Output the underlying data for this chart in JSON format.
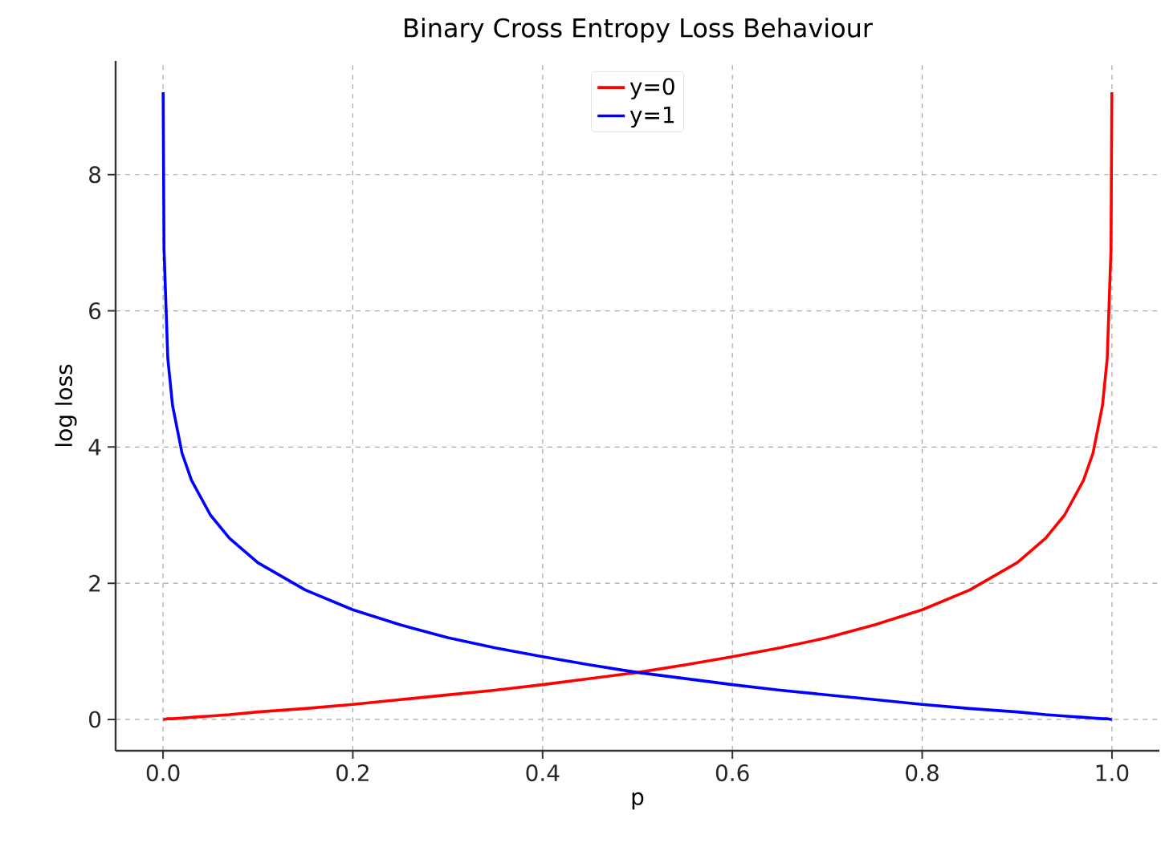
{
  "chart_data": {
    "type": "line",
    "title": "Binary Cross Entropy Loss Behaviour",
    "xlabel": "p",
    "ylabel": "log loss",
    "x": [
      0.0001,
      0.001,
      0.005,
      0.01,
      0.02,
      0.03,
      0.05,
      0.07,
      0.1,
      0.15,
      0.2,
      0.25,
      0.3,
      0.35,
      0.4,
      0.45,
      0.5,
      0.55,
      0.6,
      0.65,
      0.7,
      0.75,
      0.8,
      0.85,
      0.9,
      0.93,
      0.95,
      0.97,
      0.98,
      0.99,
      0.995,
      0.999,
      0.9999
    ],
    "series": [
      {
        "name": "y=0",
        "color": "#ff0000",
        "values": [
          0,
          0,
          0.01,
          0.01,
          0.02,
          0.03,
          0.05,
          0.07,
          0.11,
          0.16,
          0.22,
          0.29,
          0.36,
          0.43,
          0.51,
          0.6,
          0.69,
          0.8,
          0.92,
          1.05,
          1.2,
          1.39,
          1.61,
          1.9,
          2.3,
          2.66,
          3.0,
          3.51,
          3.91,
          4.61,
          5.3,
          6.91,
          9.21
        ]
      },
      {
        "name": "y=1",
        "color": "#0000ff",
        "values": [
          9.21,
          6.91,
          5.3,
          4.61,
          3.91,
          3.51,
          3.0,
          2.66,
          2.3,
          1.9,
          1.61,
          1.39,
          1.2,
          1.05,
          0.92,
          0.8,
          0.69,
          0.6,
          0.51,
          0.43,
          0.36,
          0.29,
          0.22,
          0.16,
          0.11,
          0.07,
          0.05,
          0.03,
          0.02,
          0.01,
          0.01,
          0,
          0
        ]
      }
    ],
    "xlim": [
      -0.05,
      1.05
    ],
    "ylim": [
      -0.46,
      9.67
    ],
    "xticks": [
      {
        "value": 0,
        "label": "0.0"
      },
      {
        "value": 0.2,
        "label": "0.2"
      },
      {
        "value": 0.4,
        "label": "0.4"
      },
      {
        "value": 0.6,
        "label": "0.6"
      },
      {
        "value": 0.8,
        "label": "0.8"
      },
      {
        "value": 1,
        "label": "1.0"
      }
    ],
    "yticks": [
      0,
      2,
      4,
      6,
      8
    ],
    "grid": true,
    "legend": "top",
    "marker": "none",
    "line_style": "solid"
  }
}
